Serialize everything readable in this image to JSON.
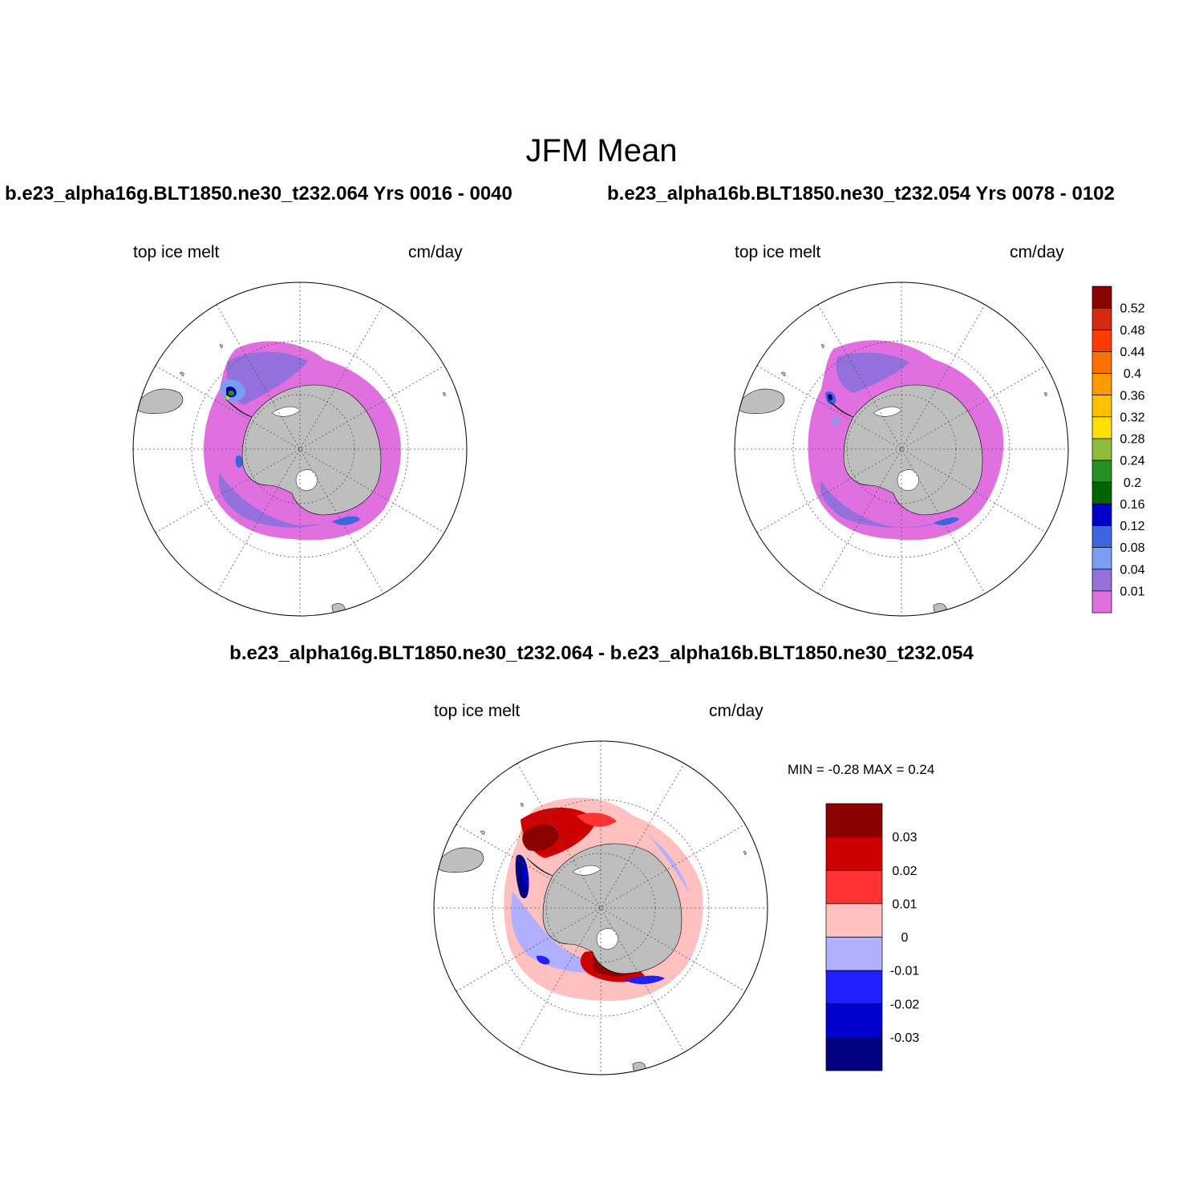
{
  "figure": {
    "title": "JFM Mean",
    "case_left": "b.e23_alpha16g.BLT1850.ne30_t232.064  Yrs 0016 - 0040",
    "case_right": "b.e23_alpha16b.BLT1850.ne30_t232.054  Yrs 0078 - 0102",
    "diff_title": "b.e23_alpha16g.BLT1850.ne30_t232.064 - b.e23_alpha16b.BLT1850.ne30_t232.054"
  },
  "panels": {
    "left": {
      "variable": "top ice melt",
      "units": "cm/day"
    },
    "right": {
      "variable": "top ice melt",
      "units": "cm/day"
    },
    "diff": {
      "variable": "top ice melt",
      "units": "cm/day",
      "min_max": "MIN =  -0.28 MAX =   0.24"
    }
  },
  "colorbar_main": {
    "labels": [
      "0.52",
      "0.48",
      "0.44",
      "0.4",
      "0.36",
      "0.32",
      "0.28",
      "0.24",
      "0.2",
      "0.16",
      "0.12",
      "0.08",
      "0.04",
      "0.01"
    ],
    "colors": [
      "#8b0000",
      "#d42a10",
      "#ff3a00",
      "#ff7000",
      "#ff9a00",
      "#ffc000",
      "#ffe000",
      "#8fbb3a",
      "#229122",
      "#006400",
      "#0000c8",
      "#3e64e0",
      "#7a9ef5",
      "#9370db",
      "#e070e0"
    ]
  },
  "colorbar_diff": {
    "labels": [
      "0.03",
      "0.02",
      "0.01",
      "0",
      "-0.01",
      "-0.02",
      "-0.03"
    ],
    "colors": [
      "#8b0000",
      "#cc0000",
      "#ff3333",
      "#ffc0c0",
      "#b0b0ff",
      "#2020ff",
      "#0000cc",
      "#000080"
    ]
  },
  "map_colors": {
    "land": "#bebebe",
    "grid": "#555555"
  }
}
